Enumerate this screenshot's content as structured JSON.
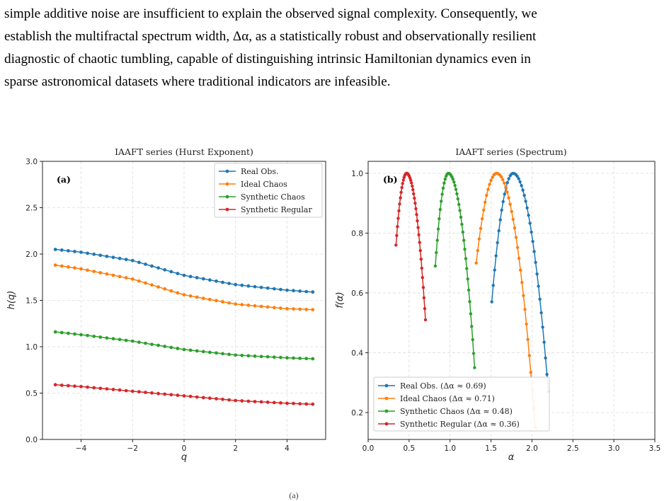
{
  "paragraph": {
    "lines": [
      "simple additive noise are insufficient to explain the observed signal complexity. Consequently, we",
      "establish the multifractal spectrum width, Δα, as a statistically robust and observationally resilient",
      "diagnostic of chaotic tumbling, capable of distinguishing intrinsic Hamiltonian dynamics even in",
      "sparse astronomical datasets where traditional indicators are infeasible."
    ]
  },
  "caption_fragment": "(a)",
  "colors": {
    "real": "#1f77b4",
    "ideal": "#ff7f0e",
    "synthetic_chaos": "#2ca02c",
    "synthetic_regular": "#d62728"
  },
  "chart_data": [
    {
      "type": "line",
      "panel": "(a)",
      "title": "IAAFT series (Hurst Exponent)",
      "xlabel": "q",
      "ylabel": "h(q)",
      "xlim": [
        -5.5,
        5.5
      ],
      "ylim": [
        0.0,
        3.0
      ],
      "xticks": [
        -4,
        -2,
        0,
        2,
        4
      ],
      "xtick_labels": [
        "−4",
        "−2",
        "0",
        "2",
        "4"
      ],
      "yticks": [
        0.0,
        0.5,
        1.0,
        1.5,
        2.0,
        2.5,
        3.0
      ],
      "ytick_labels": [
        "0.0",
        "0.5",
        "1.0",
        "1.5",
        "2.0",
        "2.5",
        "3.0"
      ],
      "grid": true,
      "legend_position": "top-right",
      "q_range": [
        -5,
        5
      ],
      "n_points": 41,
      "series": [
        {
          "name": "Real Obs.",
          "color_key": "real",
          "h_at_q": {
            "-5": 2.05,
            "-4": 2.02,
            "-2": 1.93,
            "0": 1.77,
            "2": 1.67,
            "4": 1.61,
            "5": 1.59
          }
        },
        {
          "name": "Ideal Chaos",
          "color_key": "ideal",
          "h_at_q": {
            "-5": 1.88,
            "-4": 1.84,
            "-2": 1.73,
            "0": 1.56,
            "2": 1.46,
            "4": 1.41,
            "5": 1.4
          }
        },
        {
          "name": "Synthetic Chaos",
          "color_key": "synthetic_chaos",
          "h_at_q": {
            "-5": 1.16,
            "-4": 1.13,
            "-2": 1.06,
            "0": 0.97,
            "2": 0.91,
            "4": 0.88,
            "5": 0.87
          }
        },
        {
          "name": "Synthetic Regular",
          "color_key": "synthetic_regular",
          "h_at_q": {
            "-5": 0.59,
            "-4": 0.57,
            "-2": 0.52,
            "0": 0.47,
            "2": 0.42,
            "4": 0.39,
            "5": 0.38
          }
        }
      ]
    },
    {
      "type": "line",
      "panel": "(b)",
      "title": "IAAFT series (Spectrum)",
      "xlabel": "α",
      "ylabel": "f(α)",
      "xlim": [
        0.0,
        3.5
      ],
      "ylim": [
        0.11,
        1.04
      ],
      "xticks": [
        0.0,
        0.5,
        1.0,
        1.5,
        2.0,
        2.5,
        3.0,
        3.5
      ],
      "xtick_labels": [
        "0.0",
        "0.5",
        "1.0",
        "1.5",
        "2.0",
        "2.5",
        "3.0",
        "3.5"
      ],
      "yticks": [
        0.2,
        0.4,
        0.6,
        0.8,
        1.0
      ],
      "ytick_labels": [
        "0.2",
        "0.4",
        "0.6",
        "0.8",
        "1.0"
      ],
      "grid": true,
      "legend_position": "bottom-left",
      "n_points": 41,
      "series": [
        {
          "name": "Real Obs. (Δα ≈ 0.69)",
          "color_key": "real",
          "alpha_left": 1.51,
          "f_left": 0.57,
          "alpha_peak": 1.77,
          "alpha_right": 2.2,
          "f_right": 0.27
        },
        {
          "name": "Ideal Chaos (Δα ≈ 0.71)",
          "color_key": "ideal",
          "alpha_left": 1.32,
          "f_left": 0.7,
          "alpha_peak": 1.57,
          "alpha_right": 2.04,
          "f_right": 0.15
        },
        {
          "name": "Synthetic Chaos (Δα ≈ 0.48)",
          "color_key": "synthetic_chaos",
          "alpha_left": 0.82,
          "f_left": 0.69,
          "alpha_peak": 0.98,
          "alpha_right": 1.3,
          "f_right": 0.35
        },
        {
          "name": "Synthetic Regular (Δα ≈ 0.36)",
          "color_key": "synthetic_regular",
          "alpha_left": 0.34,
          "f_left": 0.76,
          "alpha_peak": 0.47,
          "alpha_right": 0.7,
          "f_right": 0.51
        }
      ]
    }
  ]
}
